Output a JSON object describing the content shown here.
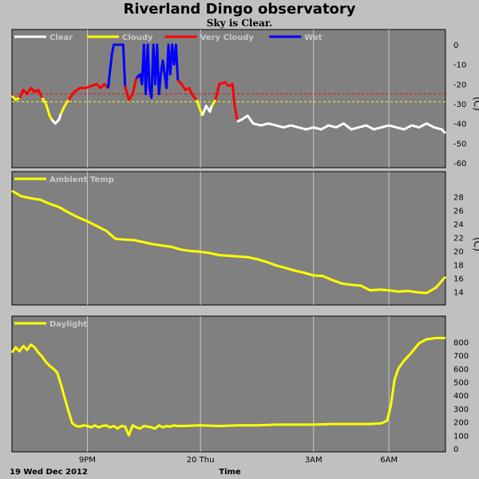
{
  "title": "Riverland Dingo observatory",
  "subtitle": "Sky is Clear.",
  "footer": {
    "date": "19 Wed Dec 2012",
    "time_label": "Time"
  },
  "x_axis": {
    "range_hours": [
      0,
      23
    ],
    "ticks": [
      {
        "hour": 4,
        "label": "9PM"
      },
      {
        "hour": 10,
        "label": "20 Thu"
      },
      {
        "hour": 16,
        "label": "3AM"
      },
      {
        "hour": 20,
        "label": "6AM"
      }
    ]
  },
  "colors": {
    "clear": "#ffffff",
    "cloudy": "#ffff00",
    "very_cloudy": "#ff0000",
    "wet": "#0000ff",
    "temp": "#ffff00",
    "daylight": "#ffff00",
    "panel": "#808080",
    "threshold_red": "#ff0000",
    "threshold_yellow": "#ffff00"
  },
  "chart_data": [
    {
      "type": "line",
      "ylim": [
        -60,
        0
      ],
      "yticks": [
        0,
        -10,
        -20,
        -30,
        -40,
        -50,
        -60
      ],
      "unit": "(C)",
      "legend": [
        {
          "name": "Clear",
          "color": "#ffffff"
        },
        {
          "name": "Cloudy",
          "color": "#ffff00"
        },
        {
          "name": "Very Cloudy",
          "color": "#ff0000"
        },
        {
          "name": "Wet",
          "color": "#0000ff"
        }
      ],
      "thresholds": [
        {
          "value": -25,
          "color": "#ff0000"
        },
        {
          "value": -29,
          "color": "#ffff00"
        }
      ],
      "series": [
        {
          "color": "#ffff00",
          "x": [
            0.0,
            0.2,
            0.4
          ],
          "y": [
            -26,
            -28,
            -27
          ]
        },
        {
          "color": "#ff0000",
          "x": [
            0.4,
            0.6,
            0.8,
            1.0,
            1.2,
            1.4,
            1.6
          ],
          "y": [
            -27,
            -23,
            -25,
            -22,
            -24,
            -23,
            -27
          ]
        },
        {
          "color": "#ffff00",
          "x": [
            1.6,
            1.8,
            2.0,
            2.1
          ],
          "y": [
            -27,
            -30,
            -36,
            -38
          ]
        },
        {
          "color": "#ffffff",
          "x": [
            2.1,
            2.3,
            2.5,
            2.6
          ],
          "y": [
            -38,
            -40,
            -38,
            -35
          ]
        },
        {
          "color": "#ffff00",
          "x": [
            2.6,
            2.8,
            3.0
          ],
          "y": [
            -35,
            -31,
            -28
          ]
        },
        {
          "color": "#ff0000",
          "x": [
            3.0,
            3.3,
            3.6,
            3.9,
            4.2,
            4.5,
            4.7,
            4.9,
            5.1
          ],
          "y": [
            -28,
            -24,
            -22,
            -22,
            -21,
            -20,
            -22,
            -20,
            -22
          ]
        },
        {
          "color": "#0000ff",
          "x": [
            5.1,
            5.3,
            5.4,
            5.5,
            5.7,
            5.9,
            6.0
          ],
          "y": [
            -22,
            -5,
            0,
            0,
            0,
            0,
            -21
          ]
        },
        {
          "color": "#ff0000",
          "x": [
            6.0,
            6.2,
            6.4,
            6.6
          ],
          "y": [
            -21,
            -28,
            -25,
            -17
          ]
        },
        {
          "color": "#0000ff",
          "x": [
            6.6,
            6.8,
            6.9,
            7.0,
            7.1,
            7.2,
            7.3,
            7.4,
            7.5,
            7.6,
            7.7,
            7.8,
            7.9,
            8.0,
            8.2,
            8.3,
            8.4,
            8.5,
            8.6,
            8.7,
            8.8
          ],
          "y": [
            -17,
            -15,
            -20,
            0,
            -25,
            0,
            -22,
            -27,
            0,
            -20,
            0,
            -25,
            -15,
            -8,
            -22,
            0,
            -15,
            0,
            -10,
            0,
            -18
          ]
        },
        {
          "color": "#ff0000",
          "x": [
            8.8,
            9.0,
            9.2,
            9.4,
            9.6,
            9.8
          ],
          "y": [
            -18,
            -20,
            -23,
            -22,
            -26,
            -28
          ]
        },
        {
          "color": "#ffff00",
          "x": [
            9.8,
            9.95,
            10.1
          ],
          "y": [
            -28,
            -32,
            -36
          ]
        },
        {
          "color": "#ffffff",
          "x": [
            10.1,
            10.3,
            10.5,
            10.6
          ],
          "y": [
            -36,
            -31,
            -34,
            -31
          ]
        },
        {
          "color": "#ffff00",
          "x": [
            10.6,
            10.8
          ],
          "y": [
            -31,
            -28
          ]
        },
        {
          "color": "#ff0000",
          "x": [
            10.8,
            11.0,
            11.3,
            11.5,
            11.7,
            11.8,
            11.95
          ],
          "y": [
            -28,
            -20,
            -19,
            -21,
            -20,
            -30,
            -38
          ]
        },
        {
          "color": "#ffffff",
          "x": [
            11.95,
            12.2,
            12.5,
            12.8,
            13.2,
            13.6,
            14.0,
            14.4,
            14.8,
            15.2,
            15.6,
            16.0,
            16.4,
            16.8,
            17.2,
            17.6,
            18.0,
            18.4,
            18.8,
            19.2,
            19.6,
            20.0,
            20.4,
            20.8,
            21.2,
            21.6,
            22.0,
            22.4,
            22.8,
            23.0
          ],
          "y": [
            -39,
            -38,
            -36,
            -40,
            -41,
            -40,
            -41,
            -42,
            -41,
            -42,
            -43,
            -42,
            -43,
            -41,
            -42,
            -40,
            -43,
            -42,
            -41,
            -43,
            -42,
            -41,
            -42,
            -43,
            -41,
            -42,
            -40,
            -42,
            -43,
            -45
          ]
        }
      ]
    },
    {
      "type": "line",
      "ylim": [
        12.5,
        29.5
      ],
      "yticks": [
        28,
        26,
        24,
        22,
        20,
        18,
        16,
        14
      ],
      "unit": "(C)",
      "legend": [
        {
          "name": "Ambient Temp",
          "color": "#ffff00"
        }
      ],
      "series": [
        {
          "name": "Ambient Temp",
          "color": "#ffff00",
          "x": [
            0,
            0.5,
            1,
            1.5,
            2,
            2.5,
            3,
            3.5,
            4,
            4.5,
            5,
            5.5,
            6,
            6.5,
            7,
            7.5,
            8,
            8.5,
            9,
            9.5,
            10,
            10.5,
            11,
            11.5,
            12,
            12.5,
            13,
            13.5,
            14,
            14.5,
            15,
            15.5,
            16,
            16.5,
            17,
            17.5,
            18,
            18.5,
            19,
            19.5,
            20,
            20.5,
            21,
            21.5,
            22,
            22.5,
            23
          ],
          "y": [
            28.9,
            28.1,
            27.8,
            27.6,
            27.0,
            26.5,
            25.7,
            25.0,
            24.4,
            23.7,
            23.0,
            21.8,
            21.7,
            21.6,
            21.3,
            21.0,
            20.8,
            20.6,
            20.2,
            20.0,
            19.9,
            19.7,
            19.4,
            19.3,
            19.2,
            19.1,
            18.8,
            18.4,
            17.9,
            17.5,
            17.1,
            16.8,
            16.4,
            16.3,
            15.7,
            15.2,
            15.0,
            14.9,
            14.2,
            14.3,
            14.2,
            14.0,
            14.1,
            13.9,
            13.8,
            14.6,
            16.2
          ]
        }
      ]
    },
    {
      "type": "line",
      "ylim": [
        0,
        880
      ],
      "yticks": [
        800,
        700,
        600,
        500,
        400,
        300,
        200,
        100,
        0
      ],
      "unit": "",
      "legend": [
        {
          "name": "Daylight",
          "color": "#ffff00"
        }
      ],
      "series": [
        {
          "name": "Daylight",
          "color": "#ffff00",
          "x": [
            0,
            0.2,
            0.4,
            0.6,
            0.8,
            1.0,
            1.2,
            1.4,
            1.6,
            1.8,
            2.0,
            2.2,
            2.4,
            2.6,
            2.8,
            3.0,
            3.2,
            3.4,
            3.6,
            3.8,
            4.0,
            4.2,
            4.4,
            4.6,
            4.8,
            5.0,
            5.2,
            5.4,
            5.6,
            5.8,
            6.0,
            6.2,
            6.4,
            6.6,
            6.8,
            7.0,
            7.2,
            7.4,
            7.6,
            7.8,
            8.0,
            8.2,
            8.4,
            8.6,
            8.8,
            9.0,
            10,
            11,
            12,
            13,
            14,
            15,
            16,
            17,
            18,
            19,
            19.6,
            19.9,
            20.1,
            20.3,
            20.5,
            20.8,
            21.2,
            21.6,
            22.0,
            22.5,
            23.0
          ],
          "y": [
            720,
            760,
            730,
            770,
            740,
            780,
            760,
            720,
            690,
            650,
            620,
            600,
            570,
            480,
            380,
            280,
            190,
            170,
            165,
            175,
            170,
            160,
            175,
            160,
            170,
            175,
            160,
            170,
            150,
            170,
            165,
            100,
            175,
            160,
            150,
            170,
            165,
            160,
            150,
            175,
            160,
            170,
            165,
            175,
            170,
            170,
            175,
            170,
            175,
            175,
            180,
            180,
            180,
            185,
            185,
            185,
            190,
            210,
            320,
            520,
            600,
            660,
            720,
            790,
            820,
            830,
            830
          ]
        }
      ]
    }
  ]
}
